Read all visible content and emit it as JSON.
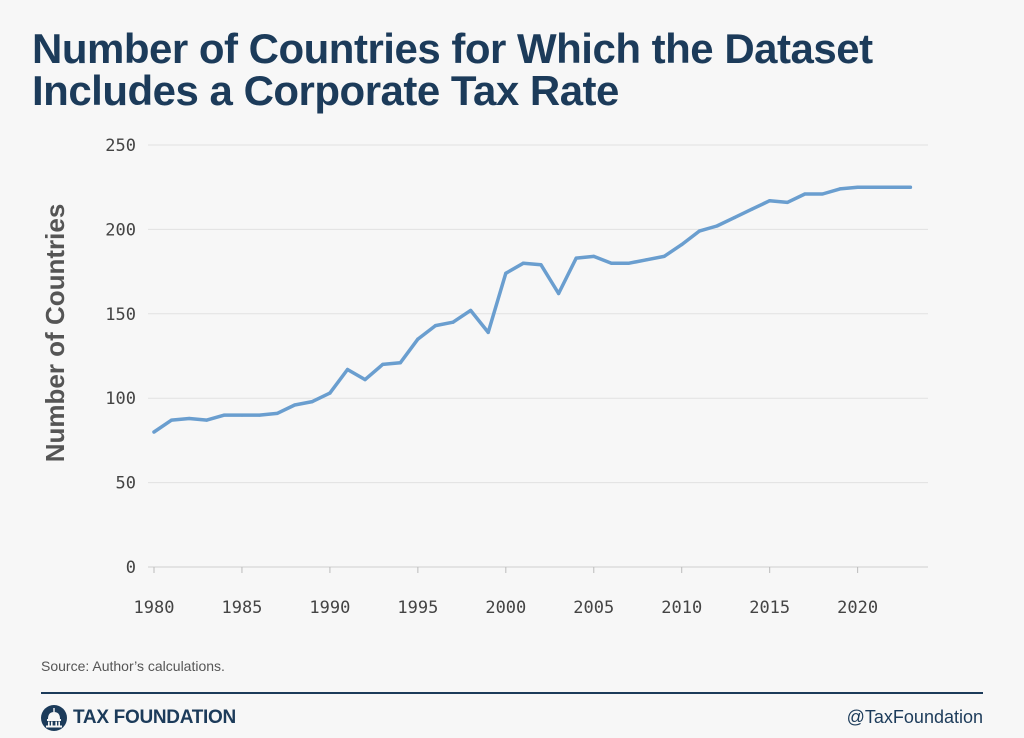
{
  "title": "Number of Countries for Which the Dataset Includes a Corporate Tax Rate",
  "source": "Source: Author’s calculations.",
  "footer": {
    "brand": "TAX FOUNDATION",
    "handle": "@TaxFoundation",
    "brand_color": "#1c3b5a"
  },
  "chart_data": {
    "type": "line",
    "title": "Number of Countries for Which the Dataset Includes a Corporate Tax Rate",
    "xlabel": "",
    "ylabel": "Number of Countries",
    "xlim": [
      1980,
      2024
    ],
    "ylim": [
      0,
      250
    ],
    "xticks": [
      1980,
      1985,
      1990,
      1995,
      2000,
      2005,
      2010,
      2015,
      2020
    ],
    "yticks": [
      0,
      50,
      100,
      150,
      200,
      250
    ],
    "grid": true,
    "line_color": "#6a9ecf",
    "series": [
      {
        "name": "Number of Countries",
        "x": [
          1980,
          1981,
          1982,
          1983,
          1984,
          1985,
          1986,
          1987,
          1988,
          1989,
          1990,
          1991,
          1992,
          1993,
          1994,
          1995,
          1996,
          1997,
          1998,
          1999,
          2000,
          2001,
          2002,
          2003,
          2004,
          2005,
          2006,
          2007,
          2008,
          2009,
          2010,
          2011,
          2012,
          2013,
          2014,
          2015,
          2016,
          2017,
          2018,
          2019,
          2020,
          2021,
          2022,
          2023
        ],
        "values": [
          80,
          87,
          88,
          87,
          90,
          90,
          90,
          91,
          96,
          98,
          103,
          117,
          111,
          120,
          121,
          135,
          143,
          145,
          152,
          139,
          174,
          180,
          179,
          162,
          183,
          184,
          180,
          180,
          182,
          184,
          191,
          199,
          202,
          207,
          212,
          217,
          216,
          221,
          221,
          224,
          225,
          225,
          225,
          225
        ]
      }
    ]
  }
}
